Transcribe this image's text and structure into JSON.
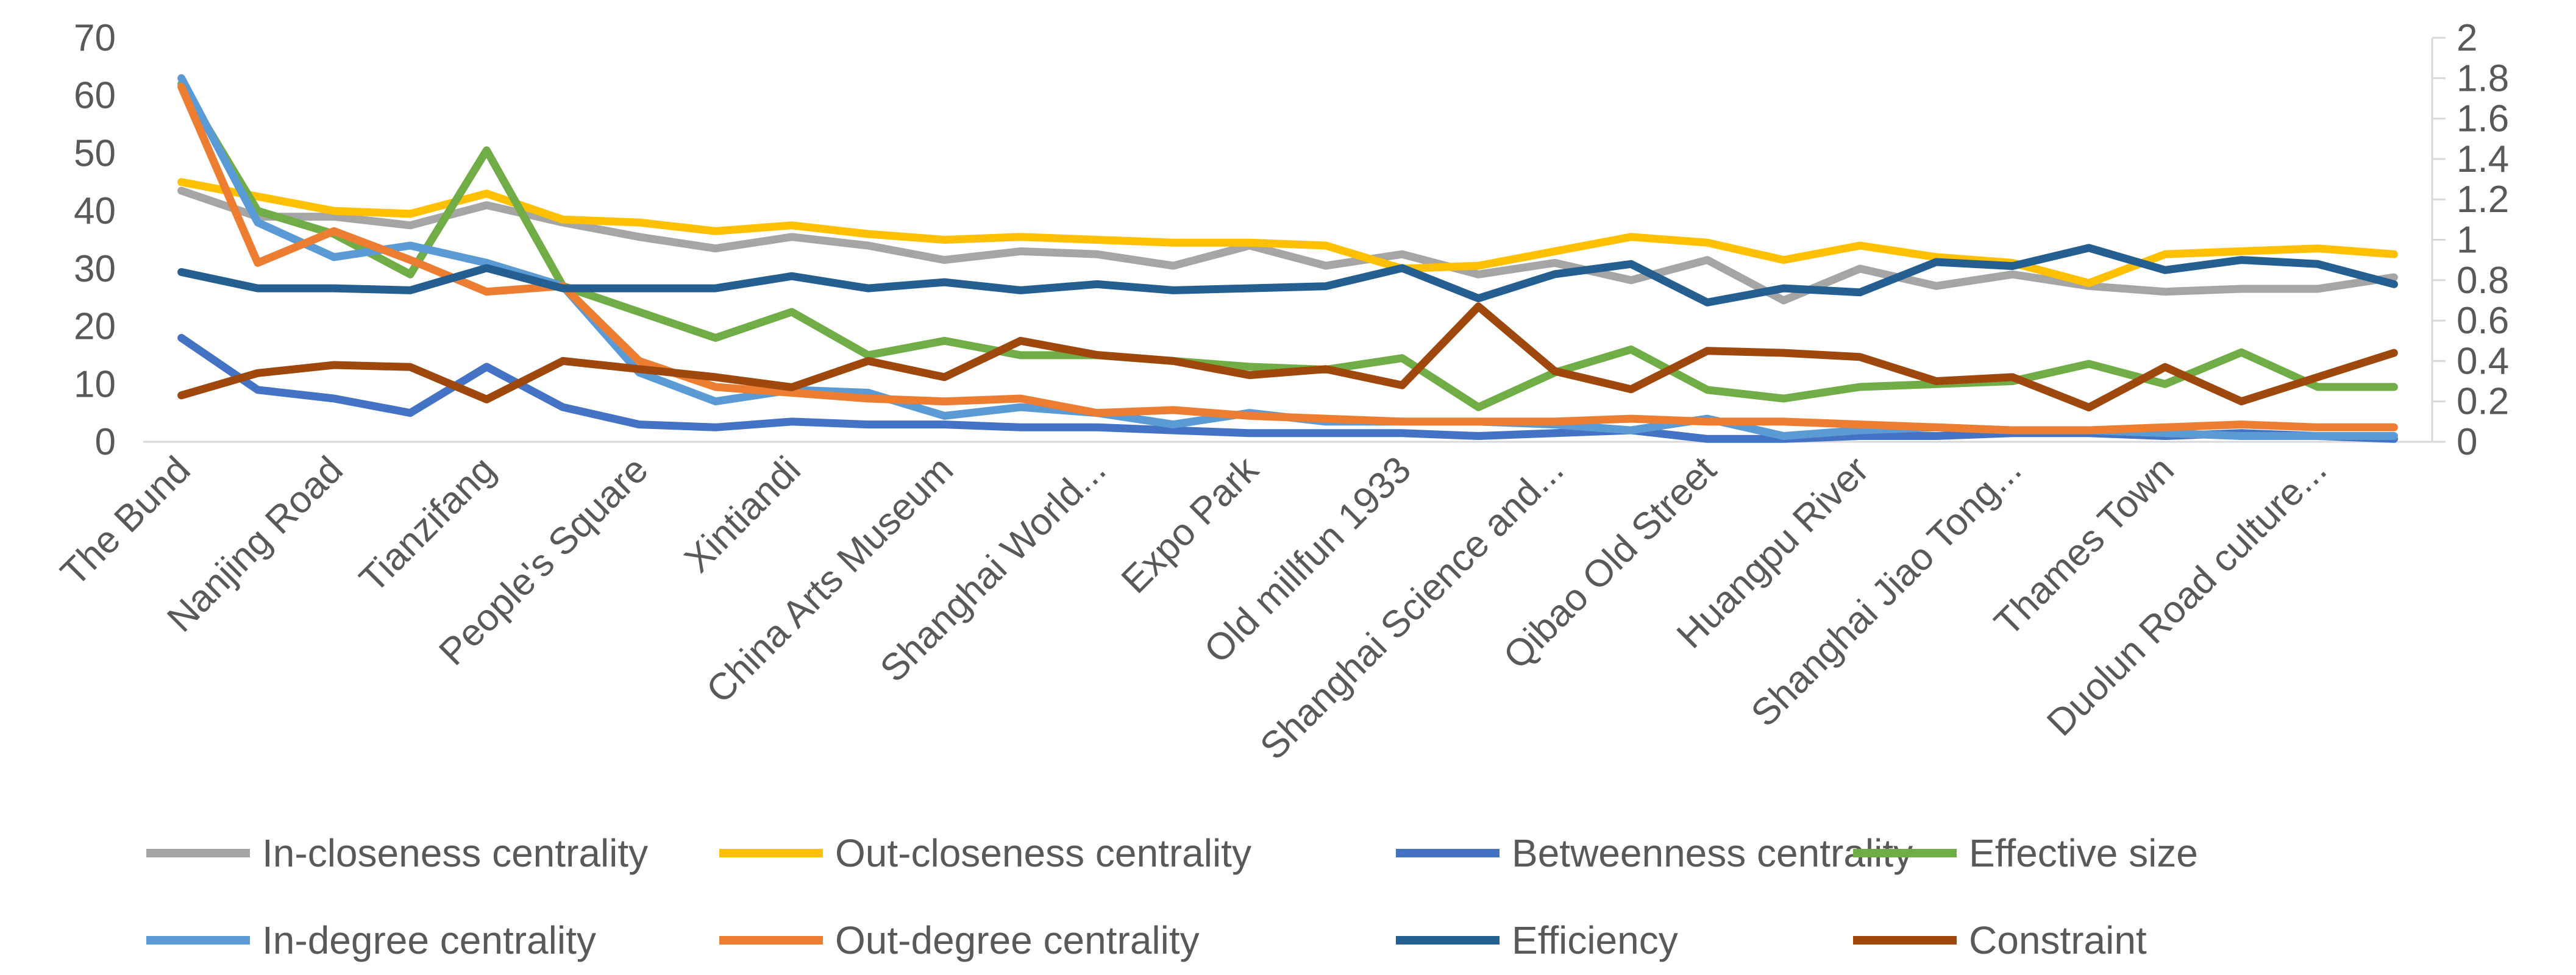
{
  "chart_data": {
    "type": "line",
    "title": "",
    "xlabel": "",
    "ylabel": "",
    "y2label": "",
    "ylim": [
      0,
      70
    ],
    "y2lim": [
      0,
      2
    ],
    "yticks": [
      "0",
      "10",
      "20",
      "30",
      "40",
      "50",
      "60",
      "70"
    ],
    "y2ticks": [
      "0",
      "0.2",
      "0.4",
      "0.6",
      "0.8",
      "1",
      "1.2",
      "1.4",
      "1.6",
      "1.8",
      "2"
    ],
    "grid": false,
    "legend_position": "bottom",
    "category_count": 30,
    "category_labels": [
      {
        "index": 0,
        "label": "The Bund"
      },
      {
        "index": 2,
        "label": "Nanjing Road"
      },
      {
        "index": 4,
        "label": "Tianzifang"
      },
      {
        "index": 6,
        "label": "People's Square"
      },
      {
        "index": 8,
        "label": "Xintiandi"
      },
      {
        "index": 10,
        "label": "China Arts Museum"
      },
      {
        "index": 12,
        "label": "Shanghai World..."
      },
      {
        "index": 14,
        "label": "Expo Park"
      },
      {
        "index": 16,
        "label": "Old millfun 1933"
      },
      {
        "index": 18,
        "label": "Shanghai Science and..."
      },
      {
        "index": 20,
        "label": "Qibao Old Street"
      },
      {
        "index": 22,
        "label": "Huangpu River"
      },
      {
        "index": 24,
        "label": "Shanghai Jiao Tong..."
      },
      {
        "index": 26,
        "label": "Thames Town"
      },
      {
        "index": 28,
        "label": "Duolun Road culture..."
      }
    ],
    "series": [
      {
        "name": "In-closeness centrality",
        "axis": "left",
        "color": "#A5A5A5",
        "values": [
          43.5,
          39,
          39,
          37.5,
          41,
          38,
          35.5,
          33.5,
          35.5,
          34,
          31.5,
          33,
          32.5,
          30.5,
          34,
          30.5,
          32.5,
          29,
          31,
          28,
          31.5,
          24.5,
          30,
          27,
          29,
          27,
          26,
          26.5,
          26.5,
          28.5
        ]
      },
      {
        "name": "Out-closeness centrality",
        "axis": "left",
        "color": "#FFC000",
        "values": [
          45,
          42.5,
          40,
          39.5,
          43,
          38.5,
          38,
          36.5,
          37.5,
          36,
          35,
          35.5,
          35,
          34.5,
          34.5,
          34,
          30,
          30.5,
          33,
          35.5,
          34.5,
          31.5,
          34,
          32,
          31,
          27.5,
          32.5,
          33,
          33.5,
          32.5
        ]
      },
      {
        "name": "Betweenness centrality",
        "axis": "left",
        "color": "#4472C4",
        "values": [
          18,
          9,
          7.5,
          5,
          13,
          6,
          3,
          2.5,
          3.5,
          3,
          3,
          2.5,
          2.5,
          2,
          1.5,
          1.5,
          1.5,
          1,
          1.5,
          2,
          0.5,
          0.5,
          1,
          1,
          1.5,
          1.5,
          1,
          1.5,
          1,
          0.5
        ]
      },
      {
        "name": "Effective size",
        "axis": "left",
        "color": "#70AD47",
        "values": [
          62,
          40,
          36,
          29,
          50.5,
          27,
          22.5,
          18,
          22.5,
          15,
          17.5,
          15,
          15,
          14,
          13,
          12.5,
          14.5,
          6,
          12,
          16,
          9,
          7.5,
          9.5,
          10,
          10.5,
          13.5,
          10,
          15.5,
          9.5,
          9.5
        ]
      },
      {
        "name": "In-degree centrality",
        "axis": "left",
        "color": "#5B9BD5",
        "values": [
          63,
          38,
          32,
          34,
          31,
          27,
          12,
          7,
          9,
          8.5,
          4.5,
          6,
          5,
          3,
          5,
          3.5,
          3.5,
          3.5,
          3,
          2,
          4,
          1,
          2,
          2.5,
          2,
          2,
          1.5,
          1,
          1,
          1
        ]
      },
      {
        "name": "Out-degree centrality",
        "axis": "left",
        "color": "#ED7D31",
        "values": [
          61.5,
          31,
          36.5,
          31.5,
          26,
          27,
          14,
          9.5,
          8.5,
          7.5,
          7,
          7.5,
          5,
          5.5,
          4.5,
          4,
          3.5,
          3.5,
          3.5,
          4,
          3.5,
          3.5,
          3,
          2.5,
          2,
          2,
          2.5,
          3,
          2.5,
          2.5
        ]
      },
      {
        "name": "Efficiency",
        "axis": "right",
        "color": "#255E91",
        "values": [
          0.84,
          0.76,
          0.76,
          0.75,
          0.86,
          0.76,
          0.76,
          0.76,
          0.82,
          0.76,
          0.79,
          0.75,
          0.78,
          0.75,
          0.76,
          0.77,
          0.86,
          0.71,
          0.83,
          0.88,
          0.69,
          0.76,
          0.74,
          0.89,
          0.87,
          0.96,
          0.85,
          0.9,
          0.88,
          0.78
        ]
      },
      {
        "name": "Constraint",
        "axis": "right",
        "color": "#9E480E",
        "values": [
          0.23,
          0.34,
          0.38,
          0.37,
          0.21,
          0.4,
          0.36,
          0.32,
          0.27,
          0.4,
          0.32,
          0.5,
          0.43,
          0.4,
          0.33,
          0.36,
          0.28,
          0.67,
          0.35,
          0.26,
          0.45,
          0.44,
          0.42,
          0.3,
          0.32,
          0.17,
          0.37,
          0.2,
          0.32,
          0.44
        ]
      }
    ]
  }
}
